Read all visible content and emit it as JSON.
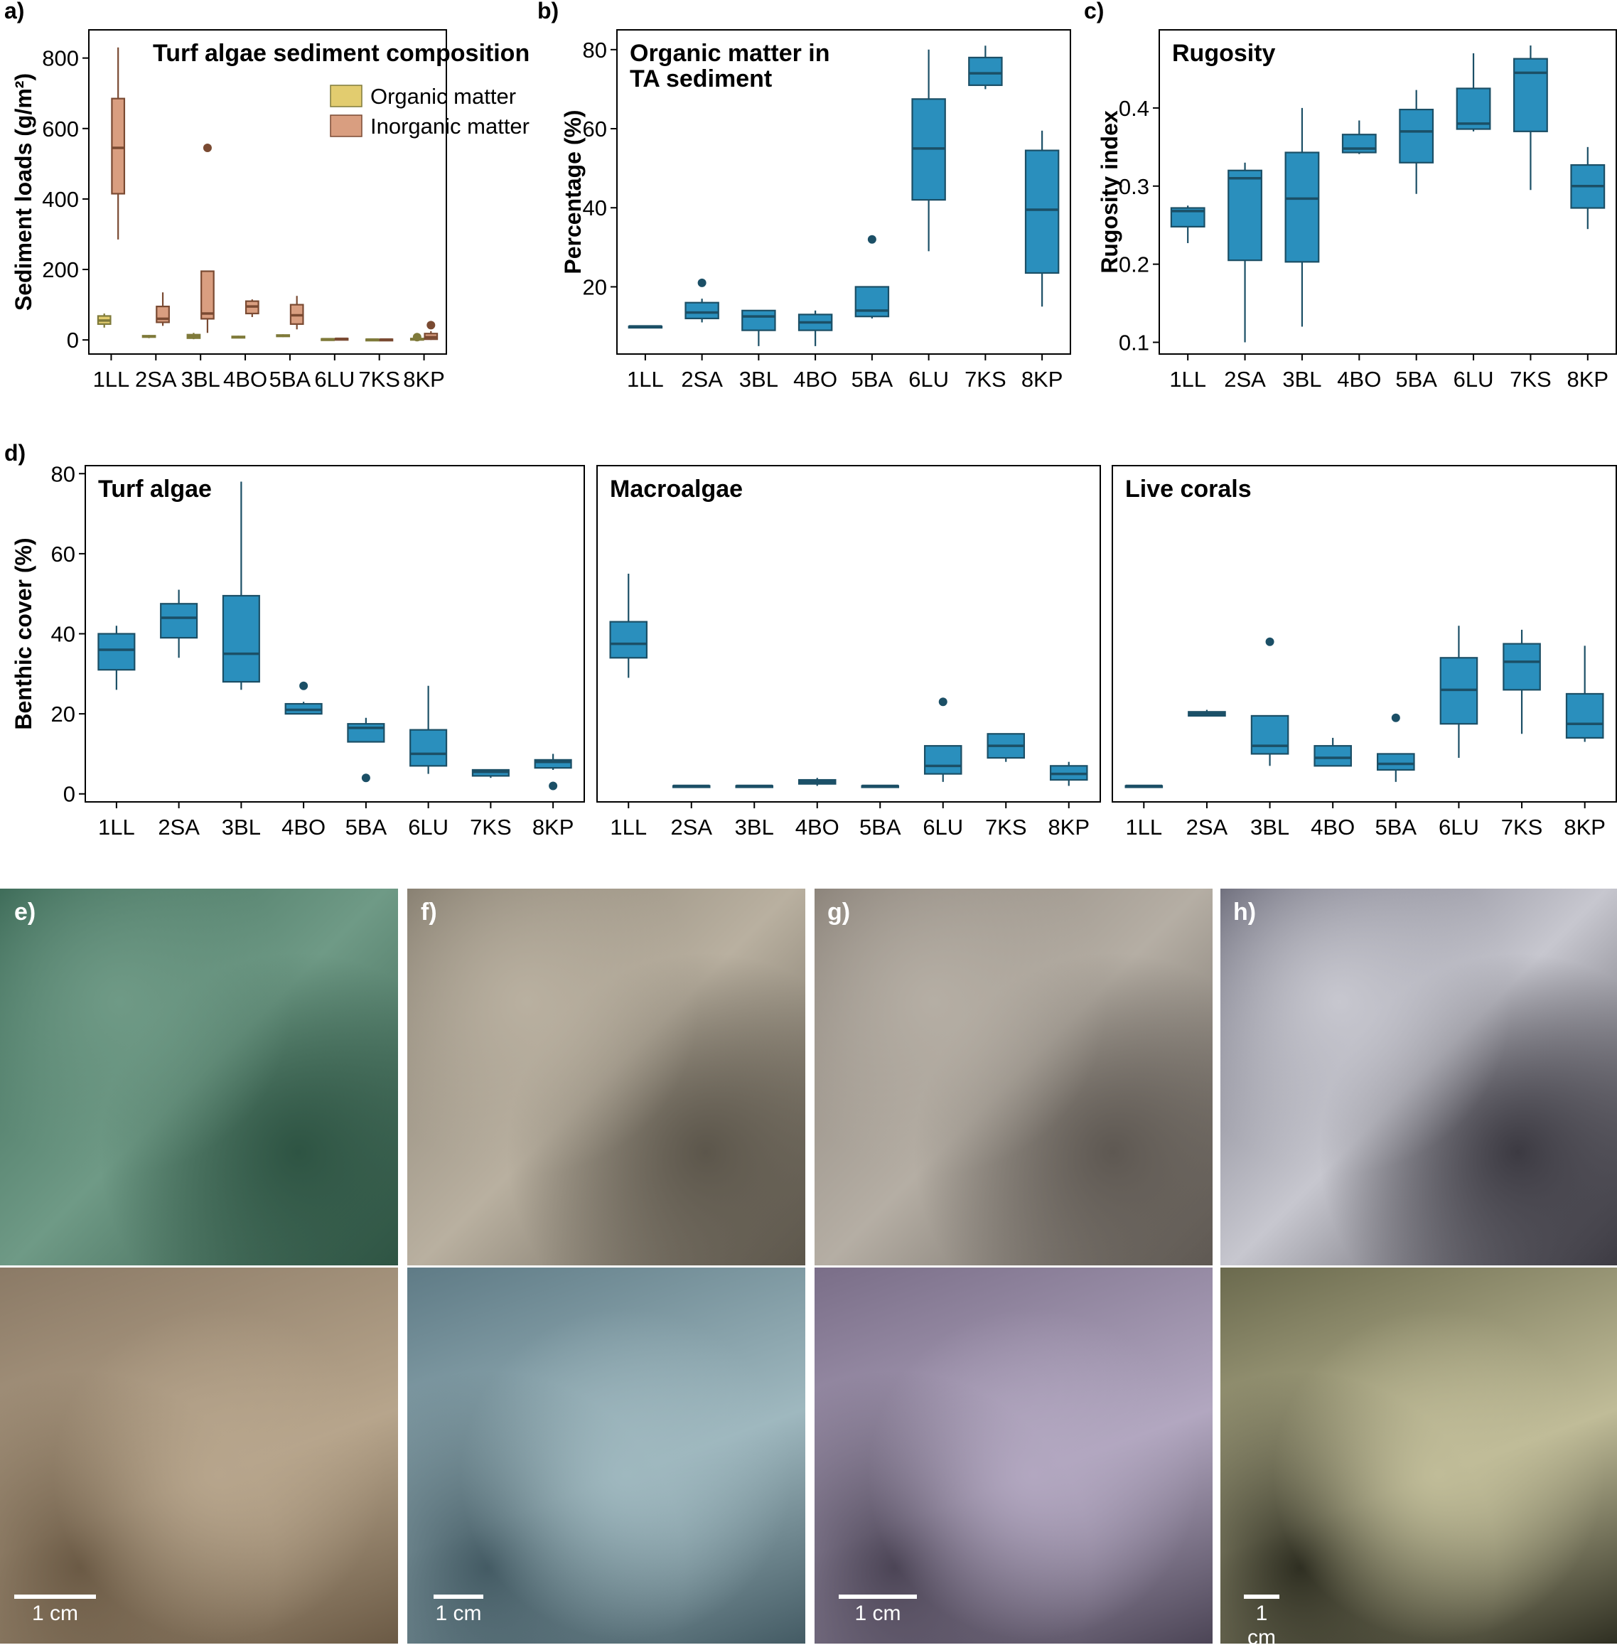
{
  "chart_data": [
    {
      "id": "a",
      "panel_label": "a)",
      "type": "box",
      "title": "Turf algae sediment composition",
      "ylabel": "Sediment loads (g/m²)",
      "xlabel": "",
      "categories": [
        "1LL",
        "2SA",
        "3BL",
        "4BO",
        "5BA",
        "6LU",
        "7KS",
        "8KP"
      ],
      "ylim": [
        -40,
        880
      ],
      "yticks": [
        0,
        200,
        400,
        600,
        800
      ],
      "grid": false,
      "legend_position": "top-right",
      "series": [
        {
          "name": "Organic matter",
          "color": "#e2cc6f",
          "stroke": "#7f7a3a",
          "boxes": [
            {
              "min": 35,
              "q1": 45,
              "median": 55,
              "q3": 68,
              "max": 75,
              "outliers": []
            },
            {
              "min": 5,
              "q1": 8,
              "median": 10,
              "q3": 12,
              "max": 14,
              "outliers": []
            },
            {
              "min": 2,
              "q1": 5,
              "median": 10,
              "q3": 15,
              "max": 20,
              "outliers": []
            },
            {
              "min": 5,
              "q1": 6,
              "median": 8,
              "q3": 10,
              "max": 12,
              "outliers": []
            },
            {
              "min": 8,
              "q1": 10,
              "median": 12,
              "q3": 14,
              "max": 16,
              "outliers": []
            },
            {
              "min": 0,
              "q1": 1,
              "median": 2,
              "q3": 3,
              "max": 4,
              "outliers": []
            },
            {
              "min": 0,
              "q1": 0,
              "median": 1,
              "q3": 2,
              "max": 3,
              "outliers": []
            },
            {
              "min": 0,
              "q1": 1,
              "median": 2,
              "q3": 4,
              "max": 6,
              "outliers": [
                8
              ]
            }
          ]
        },
        {
          "name": "Inorganic matter",
          "color": "#d99e80",
          "stroke": "#7a4a32",
          "boxes": [
            {
              "min": 285,
              "q1": 415,
              "median": 545,
              "q3": 685,
              "max": 830,
              "outliers": []
            },
            {
              "min": 40,
              "q1": 50,
              "median": 60,
              "q3": 95,
              "max": 135,
              "outliers": []
            },
            {
              "min": 20,
              "q1": 60,
              "median": 75,
              "q3": 195,
              "max": 195,
              "outliers": [
                545
              ]
            },
            {
              "min": 65,
              "q1": 75,
              "median": 95,
              "q3": 110,
              "max": 115,
              "outliers": []
            },
            {
              "min": 30,
              "q1": 45,
              "median": 70,
              "q3": 100,
              "max": 125,
              "outliers": []
            },
            {
              "min": 0,
              "q1": 1,
              "median": 3,
              "q3": 4,
              "max": 5,
              "outliers": []
            },
            {
              "min": 0,
              "q1": 0,
              "median": 1,
              "q3": 2,
              "max": 3,
              "outliers": []
            },
            {
              "min": 0,
              "q1": 2,
              "median": 8,
              "q3": 18,
              "max": 25,
              "outliers": [
                42
              ]
            }
          ]
        }
      ]
    },
    {
      "id": "b",
      "panel_label": "b)",
      "type": "box",
      "title_lines": [
        "Organic matter in",
        "TA sediment"
      ],
      "ylabel": "Percentage (%)",
      "xlabel": "",
      "categories": [
        "1LL",
        "2SA",
        "3BL",
        "4BO",
        "5BA",
        "6LU",
        "7KS",
        "8KP"
      ],
      "ylim": [
        3,
        85
      ],
      "yticks": [
        20,
        40,
        60,
        80
      ],
      "grid": false,
      "series": [
        {
          "name": "",
          "color": "#2a8fbd",
          "stroke": "#1b4f66",
          "boxes": [
            {
              "min": 10,
              "q1": 10,
              "median": 10,
              "q3": 10,
              "max": 10,
              "outliers": []
            },
            {
              "min": 11,
              "q1": 12,
              "median": 13.5,
              "q3": 16,
              "max": 17,
              "outliers": [
                21
              ]
            },
            {
              "min": 5,
              "q1": 9,
              "median": 12.5,
              "q3": 14,
              "max": 14,
              "outliers": []
            },
            {
              "min": 5,
              "q1": 9,
              "median": 11,
              "q3": 13,
              "max": 14,
              "outliers": []
            },
            {
              "min": 12,
              "q1": 12.5,
              "median": 14,
              "q3": 20,
              "max": 20,
              "outliers": [
                32
              ]
            },
            {
              "min": 29,
              "q1": 42,
              "median": 55,
              "q3": 67.5,
              "max": 80,
              "outliers": []
            },
            {
              "min": 70,
              "q1": 71,
              "median": 74,
              "q3": 78,
              "max": 81,
              "outliers": []
            },
            {
              "min": 15,
              "q1": 23.5,
              "median": 39.5,
              "q3": 54.5,
              "max": 59.5,
              "outliers": []
            }
          ]
        }
      ]
    },
    {
      "id": "c",
      "panel_label": "c)",
      "type": "box",
      "title": "Rugosity",
      "ylabel": "Rugosity index",
      "xlabel": "",
      "categories": [
        "1LL",
        "2SA",
        "3BL",
        "4BO",
        "5BA",
        "6LU",
        "7KS",
        "8KP"
      ],
      "ylim": [
        0.085,
        0.5
      ],
      "yticks": [
        0.1,
        0.2,
        0.3,
        0.4
      ],
      "grid": false,
      "series": [
        {
          "name": "",
          "color": "#2a8fbd",
          "stroke": "#1b4f66",
          "boxes": [
            {
              "min": 0.227,
              "q1": 0.248,
              "median": 0.268,
              "q3": 0.272,
              "max": 0.275,
              "outliers": []
            },
            {
              "min": 0.1,
              "q1": 0.205,
              "median": 0.31,
              "q3": 0.32,
              "max": 0.33,
              "outliers": []
            },
            {
              "min": 0.12,
              "q1": 0.203,
              "median": 0.284,
              "q3": 0.343,
              "max": 0.4,
              "outliers": []
            },
            {
              "min": 0.341,
              "q1": 0.343,
              "median": 0.348,
              "q3": 0.366,
              "max": 0.384,
              "outliers": []
            },
            {
              "min": 0.29,
              "q1": 0.33,
              "median": 0.37,
              "q3": 0.398,
              "max": 0.423,
              "outliers": []
            },
            {
              "min": 0.37,
              "q1": 0.373,
              "median": 0.38,
              "q3": 0.425,
              "max": 0.47,
              "outliers": []
            },
            {
              "min": 0.295,
              "q1": 0.37,
              "median": 0.445,
              "q3": 0.463,
              "max": 0.48,
              "outliers": []
            },
            {
              "min": 0.245,
              "q1": 0.272,
              "median": 0.3,
              "q3": 0.327,
              "max": 0.35,
              "outliers": []
            }
          ]
        }
      ]
    },
    {
      "id": "d-turf",
      "panel_label": "d)",
      "type": "box",
      "title": "Turf algae",
      "ylabel": "Benthic cover (%)",
      "xlabel": "",
      "categories": [
        "1LL",
        "2SA",
        "3BL",
        "4BO",
        "5BA",
        "6LU",
        "7KS",
        "8KP"
      ],
      "ylim": [
        -2,
        82
      ],
      "yticks": [
        0,
        20,
        40,
        60,
        80
      ],
      "grid": false,
      "series": [
        {
          "name": "",
          "color": "#2a8fbd",
          "stroke": "#1b4f66",
          "boxes": [
            {
              "min": 26,
              "q1": 31,
              "median": 36,
              "q3": 40,
              "max": 42,
              "outliers": []
            },
            {
              "min": 34,
              "q1": 39,
              "median": 44,
              "q3": 47.5,
              "max": 51,
              "outliers": []
            },
            {
              "min": 26,
              "q1": 28,
              "median": 35,
              "q3": 49.5,
              "max": 78,
              "outliers": []
            },
            {
              "min": 20,
              "q1": 20,
              "median": 21,
              "q3": 22.5,
              "max": 23,
              "outliers": [
                27
              ]
            },
            {
              "min": 13,
              "q1": 13,
              "median": 16.5,
              "q3": 17.5,
              "max": 19,
              "outliers": [
                4
              ]
            },
            {
              "min": 5,
              "q1": 7,
              "median": 10,
              "q3": 16,
              "max": 27,
              "outliers": []
            },
            {
              "min": 4,
              "q1": 4.5,
              "median": 5.5,
              "q3": 6,
              "max": 6,
              "outliers": []
            },
            {
              "min": 6,
              "q1": 6.5,
              "median": 8,
              "q3": 8.5,
              "max": 10,
              "outliers": [
                2
              ]
            }
          ]
        }
      ]
    },
    {
      "id": "d-macro",
      "type": "box",
      "title": "Macroalgae",
      "categories": [
        "1LL",
        "2SA",
        "3BL",
        "4BO",
        "5BA",
        "6LU",
        "7KS",
        "8KP"
      ],
      "ylim": [
        -2,
        82
      ],
      "grid": false,
      "series": [
        {
          "name": "",
          "color": "#2a8fbd",
          "stroke": "#1b4f66",
          "boxes": [
            {
              "min": 29,
              "q1": 34,
              "median": 37.5,
              "q3": 43,
              "max": 55,
              "outliers": []
            },
            {
              "min": 2,
              "q1": 2,
              "median": 2,
              "q3": 2,
              "max": 2,
              "outliers": []
            },
            {
              "min": 2,
              "q1": 2,
              "median": 2,
              "q3": 2,
              "max": 2,
              "outliers": []
            },
            {
              "min": 2,
              "q1": 2.5,
              "median": 3,
              "q3": 3.5,
              "max": 4,
              "outliers": []
            },
            {
              "min": 2,
              "q1": 2,
              "median": 2,
              "q3": 2,
              "max": 2,
              "outliers": []
            },
            {
              "min": 3,
              "q1": 5,
              "median": 7,
              "q3": 12,
              "max": 12,
              "outliers": [
                23
              ]
            },
            {
              "min": 8,
              "q1": 9,
              "median": 12,
              "q3": 15,
              "max": 15,
              "outliers": []
            },
            {
              "min": 2,
              "q1": 3.5,
              "median": 5,
              "q3": 7,
              "max": 8,
              "outliers": []
            }
          ]
        }
      ]
    },
    {
      "id": "d-coral",
      "type": "box",
      "title": "Live corals",
      "categories": [
        "1LL",
        "2SA",
        "3BL",
        "4BO",
        "5BA",
        "6LU",
        "7KS",
        "8KP"
      ],
      "ylim": [
        -2,
        82
      ],
      "grid": false,
      "series": [
        {
          "name": "",
          "color": "#2a8fbd",
          "stroke": "#1b4f66",
          "boxes": [
            {
              "min": 2,
              "q1": 2,
              "median": 2,
              "q3": 2,
              "max": 2,
              "outliers": []
            },
            {
              "min": 19.5,
              "q1": 19.5,
              "median": 20,
              "q3": 20.5,
              "max": 21,
              "outliers": []
            },
            {
              "min": 7,
              "q1": 10,
              "median": 12,
              "q3": 19.5,
              "max": 19.5,
              "outliers": [
                38
              ]
            },
            {
              "min": 7,
              "q1": 7,
              "median": 9,
              "q3": 12,
              "max": 14,
              "outliers": []
            },
            {
              "min": 3,
              "q1": 6,
              "median": 7.5,
              "q3": 10,
              "max": 10,
              "outliers": [
                19
              ]
            },
            {
              "min": 9,
              "q1": 17.5,
              "median": 26,
              "q3": 34,
              "max": 42,
              "outliers": []
            },
            {
              "min": 15,
              "q1": 26,
              "median": 33,
              "q3": 37.5,
              "max": 41,
              "outliers": []
            },
            {
              "min": 13,
              "q1": 14,
              "median": 17.5,
              "q3": 25,
              "max": 37,
              "outliers": []
            }
          ]
        }
      ]
    }
  ],
  "photos": [
    {
      "letter": "e)",
      "scale_label": "",
      "top_colors": [
        "#3c6a57",
        "#6f9a86",
        "#2e5443"
      ],
      "bottom_colors": [
        "#8b7a66",
        "#b7a58c",
        "#6b5a45"
      ]
    },
    {
      "letter": "f)",
      "scale_label": "",
      "top_colors": [
        "#867e70",
        "#b9b0a0",
        "#5c564b"
      ],
      "bottom_colors": [
        "#5f7b86",
        "#9fb8bf",
        "#445b64"
      ]
    },
    {
      "letter": "g)",
      "scale_label": "",
      "top_colors": [
        "#8a8279",
        "#b5aea4",
        "#5e5852"
      ],
      "bottom_colors": [
        "#7a6e88",
        "#b2a7c0",
        "#4c4556"
      ]
    },
    {
      "letter": "h)",
      "scale_label": "",
      "top_colors": [
        "#6c6c7a",
        "#c7c7cf",
        "#3c3a42"
      ],
      "bottom_colors": [
        "#6b6a4e",
        "#c0bc98",
        "#2f2f22"
      ]
    }
  ],
  "scale_bars": [
    "1 cm",
    "1 cm",
    "1 cm",
    "1 cm"
  ]
}
